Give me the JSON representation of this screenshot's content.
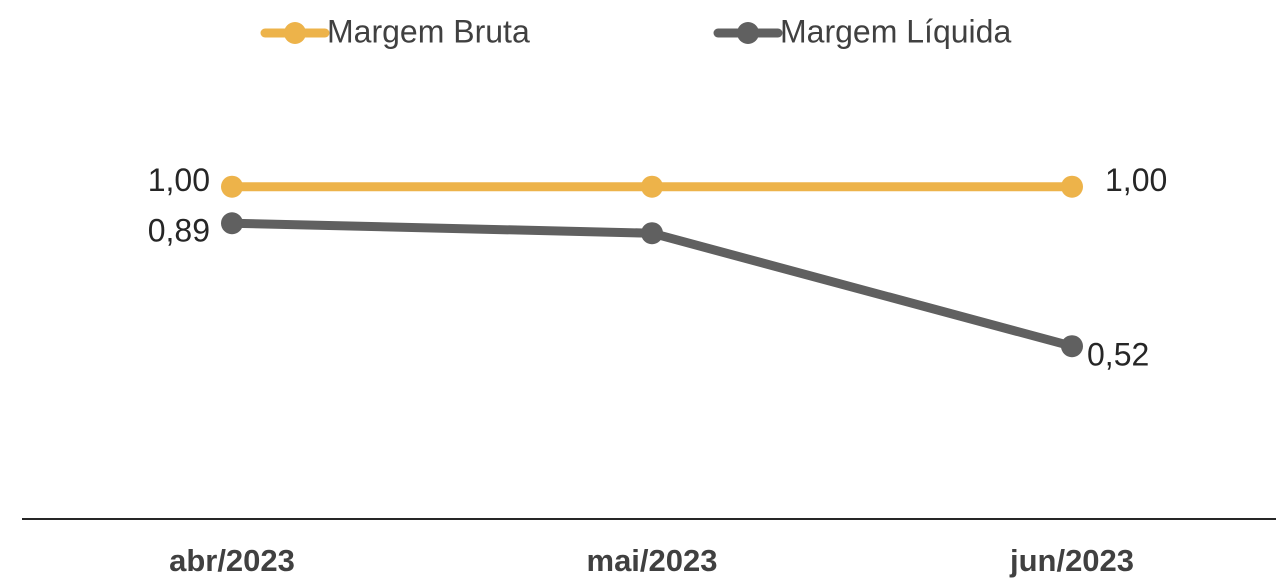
{
  "chart_data": {
    "type": "line",
    "categories": [
      "abr/2023",
      "mai/2023",
      "jun/2023"
    ],
    "series": [
      {
        "name": "Margem Bruta",
        "color": "#edb34a",
        "values": [
          1.0,
          1.0,
          1.0
        ],
        "value_labels": [
          "1,00",
          null,
          "1,00"
        ]
      },
      {
        "name": "Margem Líquida",
        "color": "#606060",
        "values": [
          0.89,
          0.86,
          0.52
        ],
        "value_labels": [
          "0,89",
          null,
          "0,52"
        ]
      }
    ],
    "ylim": [
      0,
      1.3
    ],
    "legend": "top"
  }
}
